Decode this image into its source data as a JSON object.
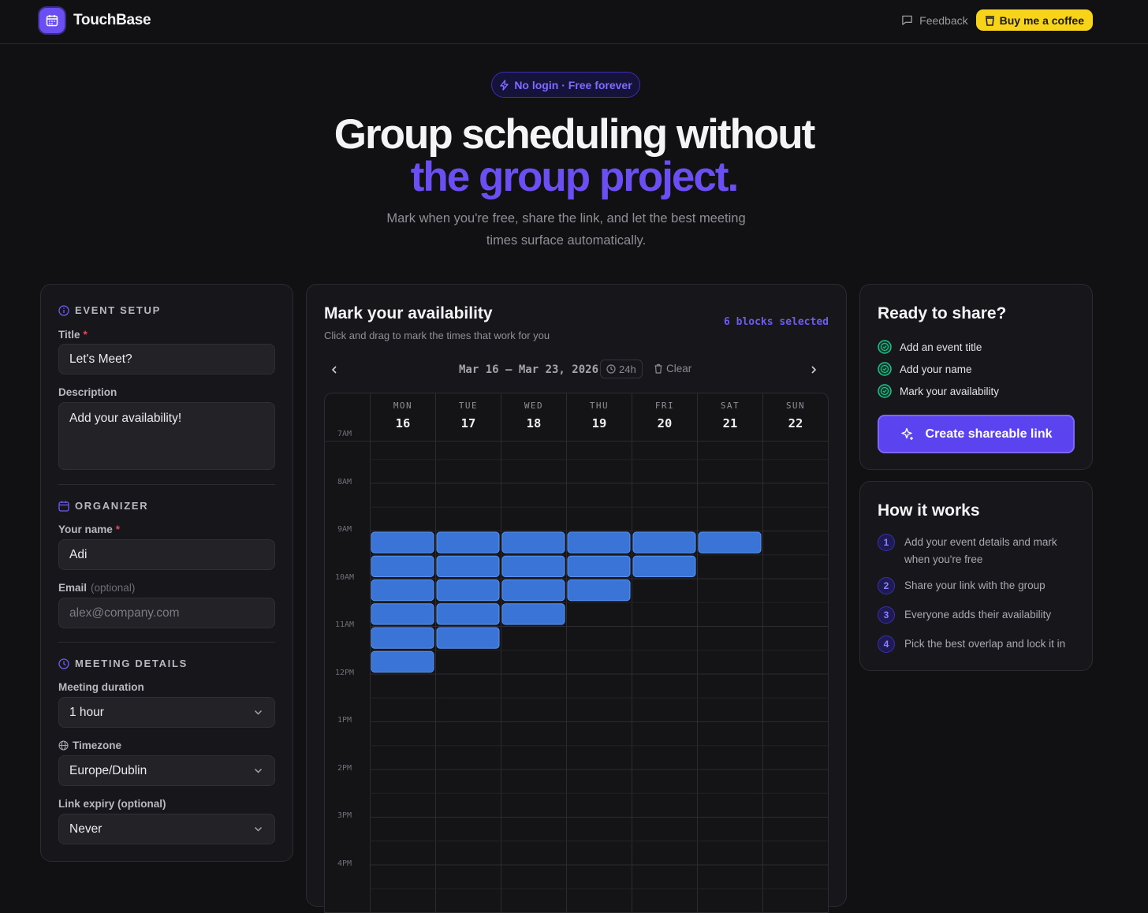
{
  "brand": {
    "name": "TouchBase",
    "accent": "#6b4ff2"
  },
  "nav": {
    "feedback_label": "Feedback",
    "coffee_label": "Buy me a coffee",
    "coffee_color": "#f7d31a"
  },
  "hero": {
    "pill": "No login · Free forever",
    "title_line1": "Group scheduling without",
    "title_line2": "the group project.",
    "subtitle": "Mark when you're free, share the link, and let the best meeting times surface automatically."
  },
  "event_setup": {
    "heading": "EVENT SETUP",
    "title_label": "Title",
    "title_value": "Let's Meet?",
    "description_label": "Description",
    "description_value": "Add your availability!"
  },
  "organizer": {
    "heading": "ORGANIZER",
    "name_label": "Your name",
    "name_value": "Adi",
    "email_label": "Email",
    "email_optional": "(optional)",
    "email_placeholder": "alex@company.com"
  },
  "meeting_details": {
    "heading": "MEETING DETAILS",
    "duration_label": "Meeting duration",
    "duration_value": "1 hour",
    "timezone_label": "Timezone",
    "timezone_value": "Europe/Dublin",
    "expiry_label": "Link expiry (optional)",
    "expiry_value": "Never"
  },
  "availability": {
    "title": "Mark your availability",
    "subtitle": "Click and drag to mark the times that work for you",
    "blocks_selected": "6 blocks selected",
    "week_range": "Mar 16 – Mar 23, 2026",
    "format_badge": "24h",
    "clear_label": "Clear",
    "block_color": "#3a74d6",
    "days": [
      {
        "name": "MON",
        "num": "16"
      },
      {
        "name": "TUE",
        "num": "17"
      },
      {
        "name": "WED",
        "num": "18"
      },
      {
        "name": "THU",
        "num": "19"
      },
      {
        "name": "FRI",
        "num": "20"
      },
      {
        "name": "SAT",
        "num": "21"
      },
      {
        "name": "SUN",
        "num": "22"
      }
    ],
    "hours": [
      "7AM",
      "8AM",
      "9AM",
      "10AM",
      "11AM",
      "12PM",
      "1PM",
      "2PM",
      "3PM",
      "4PM"
    ],
    "selected_slots": [
      {
        "day": 0,
        "start": "9:00",
        "end": "12:00"
      },
      {
        "day": 1,
        "start": "9:00",
        "end": "11:30"
      },
      {
        "day": 2,
        "start": "9:00",
        "end": "11:00"
      },
      {
        "day": 3,
        "start": "9:00",
        "end": "10:30"
      },
      {
        "day": 4,
        "start": "9:00",
        "end": "10:00"
      },
      {
        "day": 5,
        "start": "9:00",
        "end": "9:30"
      }
    ]
  },
  "ready": {
    "title": "Ready to share?",
    "checklist": [
      "Add an event title",
      "Add your name",
      "Mark your availability"
    ],
    "create_label": "Create shareable link"
  },
  "how": {
    "title": "How it works",
    "steps": [
      {
        "num": "1",
        "text": "Add your event details and mark when you're free"
      },
      {
        "num": "2",
        "text": "Share your link with the group"
      },
      {
        "num": "3",
        "text": "Everyone adds their availability"
      },
      {
        "num": "4",
        "text": "Pick the best overlap and lock it in"
      }
    ]
  }
}
